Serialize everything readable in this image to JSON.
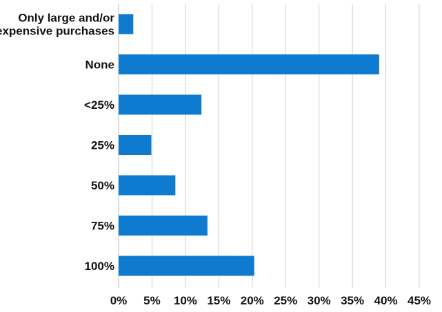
{
  "chart_data": {
    "type": "bar",
    "orientation": "horizontal",
    "categories": [
      "Only large and/or expensive purchases",
      "None",
      "<25%",
      "25%",
      "50%",
      "75%",
      "100%"
    ],
    "category_label_lines": [
      [
        "Only large and/or",
        "expensive purchases"
      ],
      [
        "None"
      ],
      [
        "<25%"
      ],
      [
        "25%"
      ],
      [
        "50%"
      ],
      [
        "75%"
      ],
      [
        "100%"
      ]
    ],
    "values": [
      2.2,
      39.0,
      12.4,
      4.9,
      8.5,
      13.3,
      20.3
    ],
    "unit": "%",
    "xlim": [
      0,
      45
    ],
    "xticks": [
      0,
      5,
      10,
      15,
      20,
      25,
      30,
      35,
      40,
      45
    ],
    "xtick_labels": [
      "0%",
      "5%",
      "10%",
      "15%",
      "20%",
      "25%",
      "30%",
      "35%",
      "40%",
      "45%"
    ],
    "grid": "vertical",
    "legend": "none",
    "title": "",
    "xlabel": "",
    "ylabel": "",
    "bar_color": "#0f7bd0",
    "grid_color": "#d0d0d0"
  }
}
